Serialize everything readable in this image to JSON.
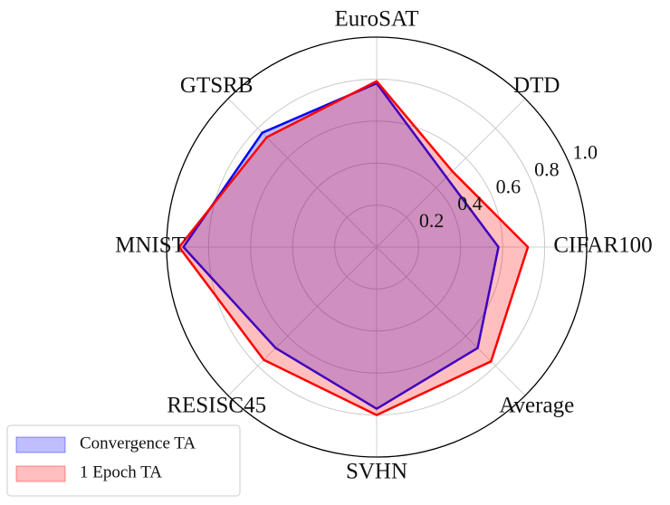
{
  "chart_data": {
    "type": "radar",
    "categories": [
      "CIFAR100",
      "DTD",
      "EuroSAT",
      "GTSRB",
      "MNIST",
      "RESISC45",
      "SVHN",
      "Average"
    ],
    "series": [
      {
        "name": "Convergence TA",
        "color": "#0000ff",
        "values": [
          0.58,
          0.47,
          0.78,
          0.77,
          0.92,
          0.68,
          0.77,
          0.68
        ]
      },
      {
        "name": "1 Epoch TA",
        "color": "#ff0000",
        "values": [
          0.72,
          0.51,
          0.79,
          0.74,
          0.94,
          0.76,
          0.8,
          0.77
        ]
      }
    ],
    "rlim": [
      0,
      1
    ],
    "rticks": [
      0.2,
      0.4,
      0.6,
      0.8,
      {
        "value": 1,
        "label": "1.0"
      }
    ],
    "grid": true,
    "legend": "lower left"
  }
}
